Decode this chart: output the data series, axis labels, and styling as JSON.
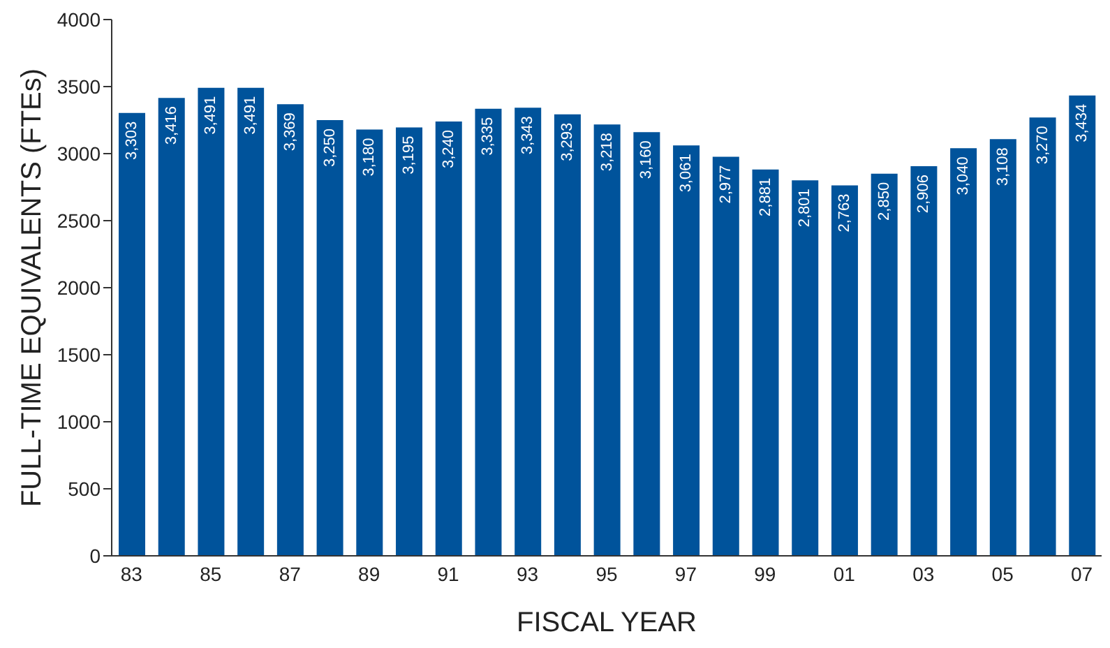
{
  "chart_data": {
    "type": "bar",
    "xlabel": "FISCAL YEAR",
    "ylabel": "FULL-TIME EQUIVALENTS (FTEs)",
    "categories": [
      "83",
      null,
      "85",
      null,
      "87",
      null,
      "89",
      null,
      "91",
      null,
      "93",
      null,
      "95",
      null,
      "97",
      null,
      "99",
      null,
      "01",
      null,
      "03",
      null,
      "05",
      null,
      "07"
    ],
    "values": [
      3303,
      3416,
      3491,
      3491,
      3369,
      3250,
      3180,
      3195,
      3240,
      3335,
      3343,
      3293,
      3218,
      3160,
      3061,
      2977,
      2881,
      2801,
      2763,
      2850,
      2906,
      3040,
      3108,
      3270,
      3434
    ],
    "value_labels": [
      "3,303",
      "3,416",
      "3,491",
      "3,491",
      "3,369",
      "3,250",
      "3,180",
      "3,195",
      "3,240",
      "3,335",
      "3,343",
      "3,293",
      "3,218",
      "3,160",
      "3,061",
      "2,977",
      "2,881",
      "2,801",
      "2,763",
      "2,850",
      "2,906",
      "3,040",
      "3,108",
      "3,270",
      "3,434"
    ],
    "color": "#00539b",
    "ylim": [
      0,
      4000
    ],
    "yticks": [
      0,
      500,
      1000,
      1500,
      2000,
      2500,
      3000,
      3500,
      4000
    ],
    "grid": false,
    "legend": false
  }
}
